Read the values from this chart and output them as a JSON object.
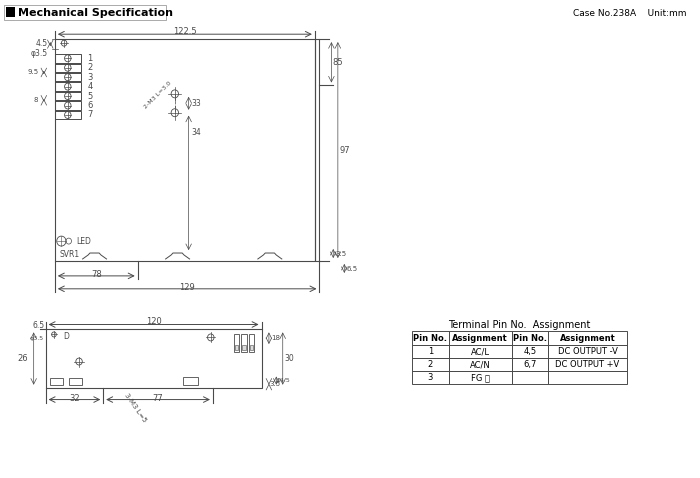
{
  "title": "Mechanical Specification",
  "case_info": "Case No.238A    Unit:mm",
  "bg_color": "#ffffff",
  "line_color": "#4a4a4a",
  "table_title": "Terminal Pin No.  Assignment",
  "table_headers": [
    "Pin No.",
    "Assignment",
    "Pin No.",
    "Assignment"
  ],
  "table_rows": [
    [
      "1",
      "AC/L",
      "4,5",
      "DC OUTPUT -V"
    ],
    [
      "2",
      "AC/N",
      "6,7",
      "DC OUTPUT +V"
    ],
    [
      "3",
      "FG ⏚",
      "",
      ""
    ]
  ]
}
